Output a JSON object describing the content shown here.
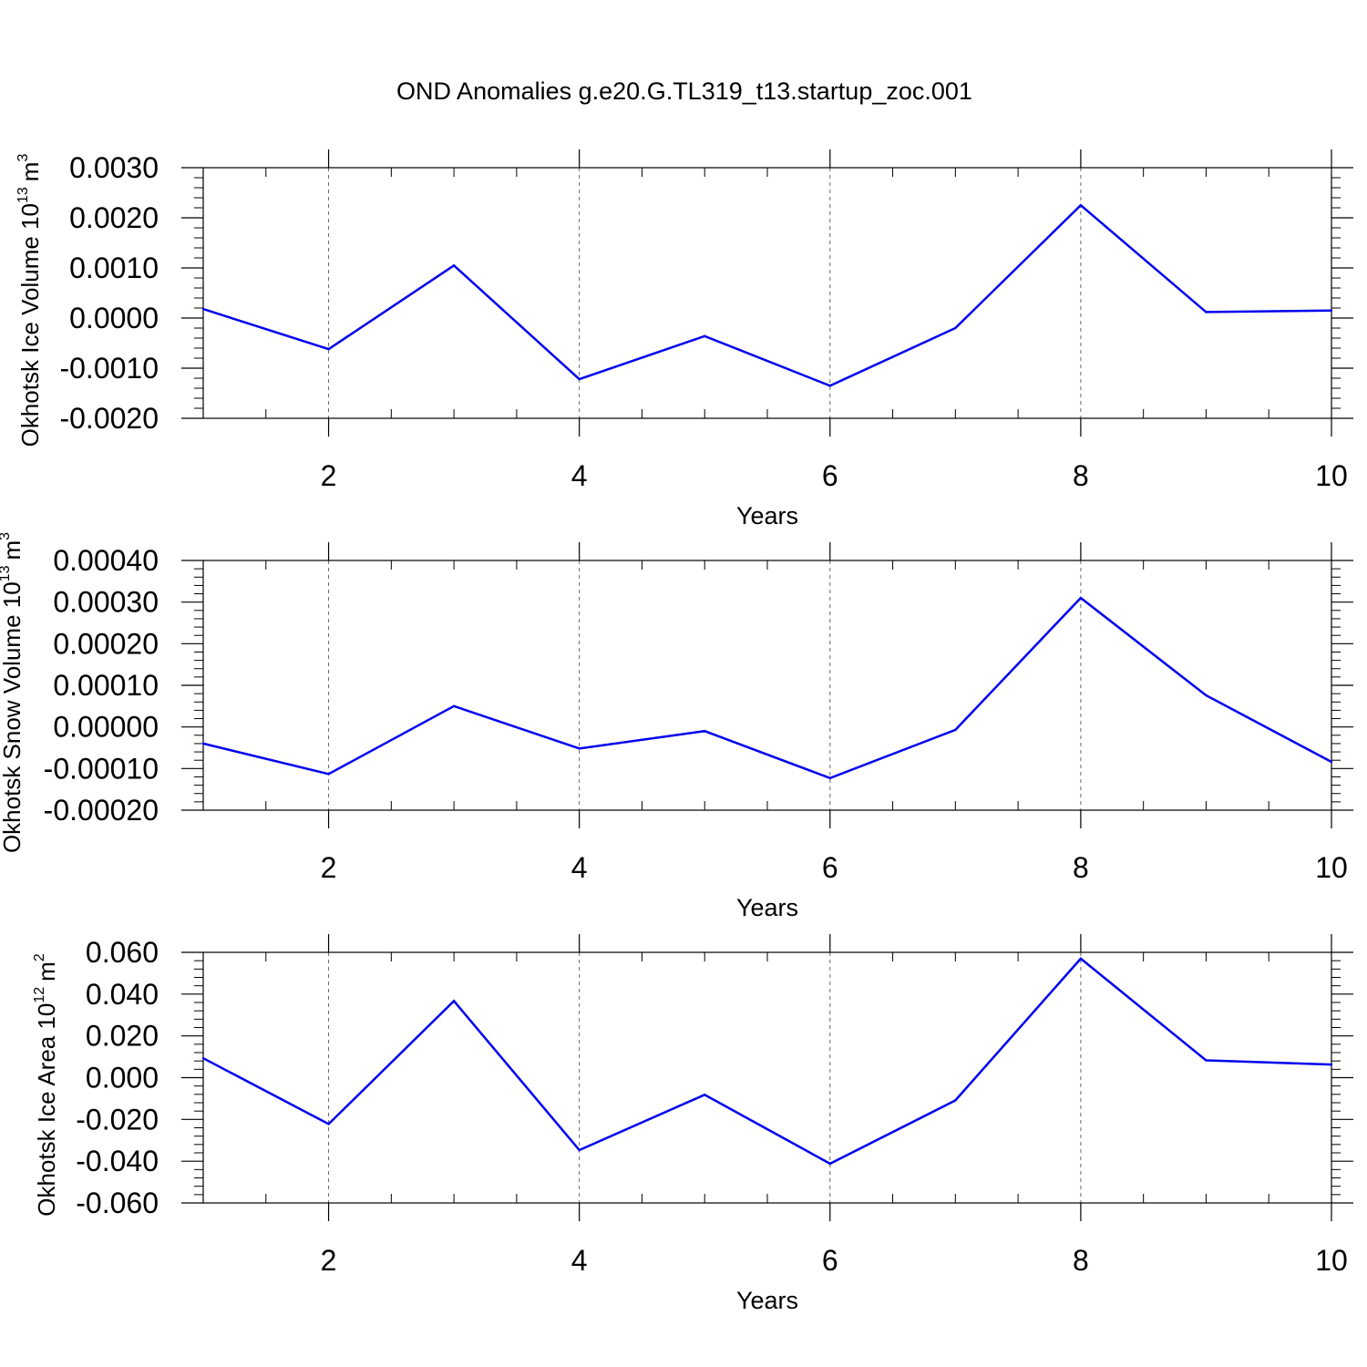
{
  "title": "OND Anomalies g.e20.G.TL319_t13.startup_zoc.001",
  "chart_data": [
    {
      "type": "line",
      "title": "OND Anomalies g.e20.G.TL319_t13.startup_zoc.001",
      "ylabel_main": "Okhotsk Ice Volume 10",
      "ylabel_exp": "13",
      "ylabel_unit": "m",
      "ylabel_unit_exp": "3",
      "xlabel": "Years",
      "xlim": [
        1,
        10
      ],
      "ylim": [
        -0.002,
        0.003
      ],
      "x_ticks": [
        2,
        4,
        6,
        8,
        10
      ],
      "x_tick_labels": [
        "2",
        "4",
        "6",
        "8",
        "10"
      ],
      "y_ticks": [
        -0.002,
        -0.001,
        0.0,
        0.001,
        0.002,
        0.003
      ],
      "y_tick_labels": [
        "-0.0020",
        "-0.0010",
        "0.0000",
        "0.0010",
        "0.0020",
        "0.0030"
      ],
      "color": "#0000ee",
      "x": [
        1,
        2,
        3,
        4,
        5,
        6,
        7,
        8,
        9,
        10
      ],
      "values": [
        0.00018,
        -0.00062,
        0.00105,
        -0.00122,
        -0.00036,
        -0.00135,
        -0.0002,
        0.00225,
        0.00012,
        0.00015
      ]
    },
    {
      "type": "line",
      "ylabel_main": "Okhotsk Snow Volume 10",
      "ylabel_exp": "13",
      "ylabel_unit": "m",
      "ylabel_unit_exp": "3",
      "xlabel": "Years",
      "xlim": [
        1,
        10
      ],
      "ylim": [
        -0.0002,
        0.0004
      ],
      "x_ticks": [
        2,
        4,
        6,
        8,
        10
      ],
      "x_tick_labels": [
        "2",
        "4",
        "6",
        "8",
        "10"
      ],
      "y_ticks": [
        -0.0002,
        -0.0001,
        0.0,
        0.0001,
        0.0002,
        0.0003,
        0.0004
      ],
      "y_tick_labels": [
        "-0.00020",
        "-0.00010",
        "0.00000",
        "0.00010",
        "0.00020",
        "0.00030",
        "0.00040"
      ],
      "color": "#0000ee",
      "x": [
        1,
        2,
        3,
        4,
        5,
        6,
        7,
        8,
        9,
        10
      ],
      "values": [
        -4e-05,
        -0.000113,
        5e-05,
        -5.2e-05,
        -1e-05,
        -0.000123,
        -7e-06,
        0.00031,
        7.6e-05,
        -8.4e-05
      ]
    },
    {
      "type": "line",
      "ylabel_main": "Okhotsk Ice Area 10",
      "ylabel_exp": "12",
      "ylabel_unit": "m",
      "ylabel_unit_exp": "2",
      "xlabel": "Years",
      "xlim": [
        1,
        10
      ],
      "ylim": [
        -0.06,
        0.06
      ],
      "x_ticks": [
        2,
        4,
        6,
        8,
        10
      ],
      "x_tick_labels": [
        "2",
        "4",
        "6",
        "8",
        "10"
      ],
      "y_ticks": [
        -0.06,
        -0.04,
        -0.02,
        0.0,
        0.02,
        0.04,
        0.06
      ],
      "y_tick_labels": [
        "-0.060",
        "-0.040",
        "-0.020",
        "0.000",
        "0.020",
        "0.040",
        "0.060"
      ],
      "color": "#0000ee",
      "x": [
        1,
        2,
        3,
        4,
        5,
        6,
        7,
        8,
        9,
        10
      ],
      "values": [
        0.0093,
        -0.0222,
        0.0367,
        -0.0347,
        -0.0082,
        -0.0412,
        -0.0109,
        0.057,
        0.0083,
        0.0063
      ]
    }
  ]
}
